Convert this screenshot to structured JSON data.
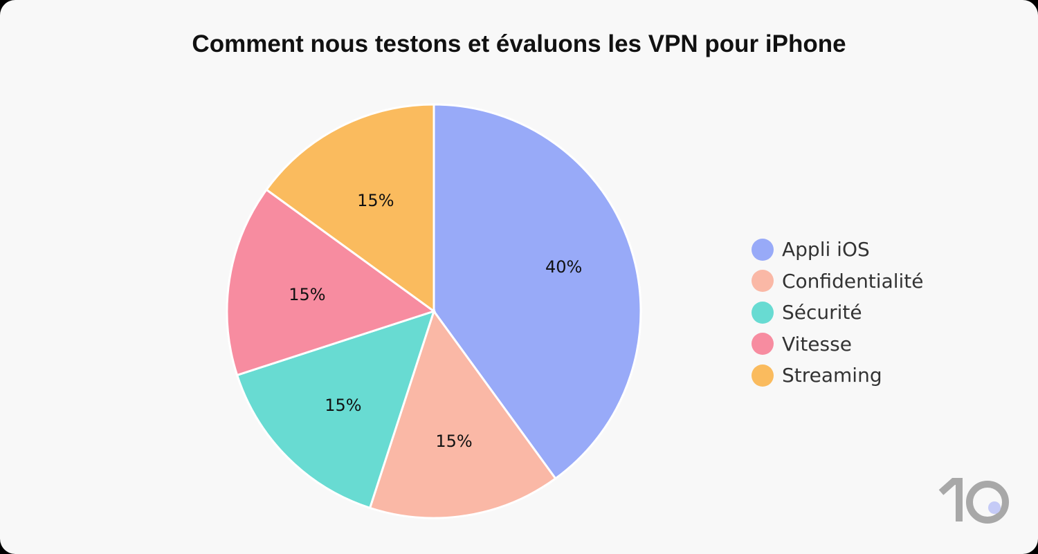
{
  "chart_data": {
    "type": "pie",
    "title": "Comment nous testons et évaluons les VPN pour iPhone",
    "start_angle": "top",
    "direction": "clockwise",
    "legend_position": "right",
    "slices": [
      {
        "label": "Appli iOS",
        "value": 40,
        "display": "40%",
        "color": "#98aaf8"
      },
      {
        "label": "Confidentialité",
        "value": 15,
        "display": "15%",
        "color": "#fab8a6"
      },
      {
        "label": "Sécurité",
        "value": 15,
        "display": "15%",
        "color": "#68dbd2"
      },
      {
        "label": "Vitesse",
        "value": 15,
        "display": "15%",
        "color": "#f78ca0"
      },
      {
        "label": "Streaming",
        "value": 15,
        "display": "15%",
        "color": "#fabb5e"
      }
    ]
  },
  "logo": {
    "text": "10",
    "color": "#a8a8a8",
    "dot_color": "#c5cbf7"
  }
}
